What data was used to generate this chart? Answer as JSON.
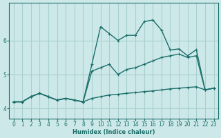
{
  "xlabel": "Humidex (Indice chaleur)",
  "bg_color": "#cde8e8",
  "grid_color": "#a8d0d0",
  "line_color": "#1a6e6a",
  "xlim": [
    -0.5,
    23.5
  ],
  "ylim": [
    3.7,
    7.1
  ],
  "yticks": [
    4,
    5,
    6
  ],
  "xticks": [
    0,
    1,
    2,
    3,
    4,
    5,
    6,
    7,
    8,
    9,
    10,
    11,
    12,
    13,
    14,
    15,
    16,
    17,
    18,
    19,
    20,
    21,
    22,
    23
  ],
  "series": [
    {
      "x": [
        0,
        1,
        2,
        3,
        4,
        5,
        6,
        7,
        8,
        9,
        10,
        11,
        12,
        13,
        14,
        15,
        16,
        17,
        18,
        19,
        20,
        21,
        22,
        23
      ],
      "y": [
        4.2,
        4.2,
        4.35,
        4.45,
        4.35,
        4.25,
        4.3,
        4.25,
        4.2,
        5.3,
        6.4,
        6.2,
        6.0,
        6.15,
        6.15,
        6.55,
        6.6,
        6.3,
        5.72,
        5.75,
        5.55,
        5.73,
        4.55,
        4.6
      ],
      "lw": 1.0
    },
    {
      "x": [
        0,
        1,
        2,
        3,
        4,
        5,
        6,
        7,
        8,
        9,
        10,
        11,
        12,
        13,
        14,
        15,
        16,
        17,
        18,
        19,
        20,
        21,
        22,
        23
      ],
      "y": [
        4.2,
        4.2,
        4.35,
        4.45,
        4.35,
        4.25,
        4.3,
        4.25,
        4.2,
        5.1,
        5.2,
        5.3,
        5.0,
        5.15,
        5.2,
        5.3,
        5.4,
        5.5,
        5.55,
        5.6,
        5.5,
        5.55,
        4.55,
        4.6
      ],
      "lw": 1.0
    },
    {
      "x": [
        0,
        1,
        2,
        3,
        4,
        5,
        6,
        7,
        8,
        9,
        10,
        11,
        12,
        13,
        14,
        15,
        16,
        17,
        18,
        19,
        20,
        21,
        22,
        23
      ],
      "y": [
        4.2,
        4.2,
        4.35,
        4.45,
        4.35,
        4.25,
        4.3,
        4.25,
        4.2,
        4.3,
        4.35,
        4.4,
        4.42,
        4.45,
        4.47,
        4.5,
        4.52,
        4.55,
        4.58,
        4.6,
        4.62,
        4.64,
        4.55,
        4.6
      ],
      "lw": 1.0
    }
  ]
}
